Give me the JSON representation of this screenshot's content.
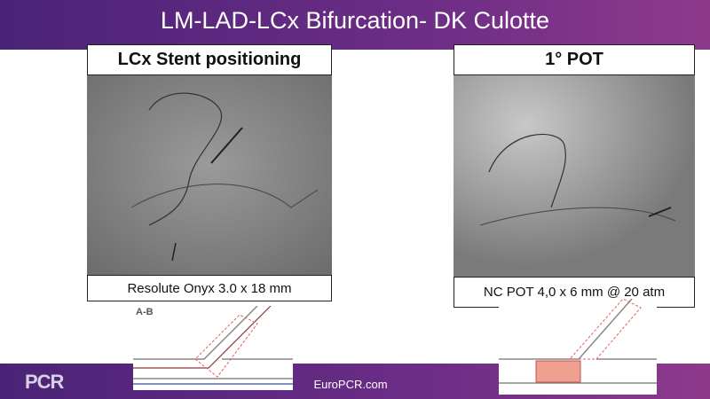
{
  "header": {
    "title": "LM-LAD-LCx Bifurcation- DK Culotte"
  },
  "panels": [
    {
      "heading": "LCx Stent positioning",
      "caption": "Resolute Onyx 3.0 x 18 mm",
      "diagram_label": "A-B"
    },
    {
      "heading": "1° POT",
      "caption": "NC POT 4,0 x 6 mm @ 20 atm"
    }
  ],
  "footer": {
    "logo": "PCR",
    "text": "EuroPCR.com"
  }
}
